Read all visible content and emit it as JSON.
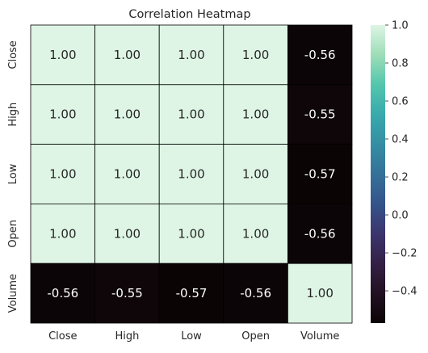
{
  "chart_data": {
    "type": "heatmap",
    "title": "Correlation Heatmap",
    "xlabel": "",
    "ylabel": "",
    "x_categories": [
      "Close",
      "High",
      "Low",
      "Open",
      "Volume"
    ],
    "y_categories": [
      "Close",
      "High",
      "Low",
      "Open",
      "Volume"
    ],
    "values": [
      [
        1.0,
        1.0,
        1.0,
        1.0,
        -0.56
      ],
      [
        1.0,
        1.0,
        1.0,
        1.0,
        -0.55
      ],
      [
        1.0,
        1.0,
        1.0,
        1.0,
        -0.57
      ],
      [
        1.0,
        1.0,
        1.0,
        1.0,
        -0.56
      ],
      [
        -0.56,
        -0.55,
        -0.57,
        -0.56,
        1.0
      ]
    ],
    "value_format": "0.00",
    "colormap": "mako",
    "color_range": [
      -0.57,
      1.0
    ],
    "colorbar": {
      "ticks": [
        1.0,
        0.8,
        0.6,
        0.4,
        0.2,
        0.0,
        -0.2,
        -0.4
      ],
      "tick_labels": [
        "1.0",
        "0.8",
        "0.6",
        "0.4",
        "0.2",
        "0.0",
        "−0.2",
        "−0.4"
      ],
      "placement": "right"
    },
    "line_color": "#000000",
    "annot": true
  }
}
